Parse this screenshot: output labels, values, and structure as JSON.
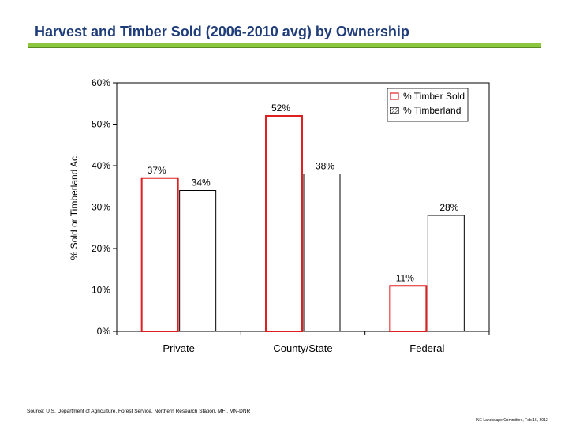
{
  "slide": {
    "title": "Harvest and Timber Sold (2006-2010 avg) by Ownership",
    "source": "Source: U.S. Department of Agriculture, Forest Service, Northern Research Station, MFI, MN-DNR",
    "footer": "NE Landscape Committee, Feb 16, 2012",
    "accent_color": "#8dc63f",
    "title_color": "#1f3d7a"
  },
  "chart_data": {
    "type": "bar",
    "ylabel": "% Sold or Timberland Ac.",
    "ylim": [
      0,
      60
    ],
    "yticks": [
      "0%",
      "10%",
      "20%",
      "30%",
      "40%",
      "50%",
      "60%"
    ],
    "categories": [
      "Private",
      "County/State",
      "Federal"
    ],
    "series": [
      {
        "name": "% Timber Sold",
        "values": [
          37,
          52,
          11
        ],
        "labels": [
          "37%",
          "52%",
          "11%"
        ],
        "border_color": "#e02020"
      },
      {
        "name": "% Timberland",
        "values": [
          34,
          38,
          28
        ],
        "labels": [
          "34%",
          "38%",
          "28%"
        ],
        "border_color": "#000000"
      }
    ],
    "legend_position": "top-right",
    "grid": false
  }
}
